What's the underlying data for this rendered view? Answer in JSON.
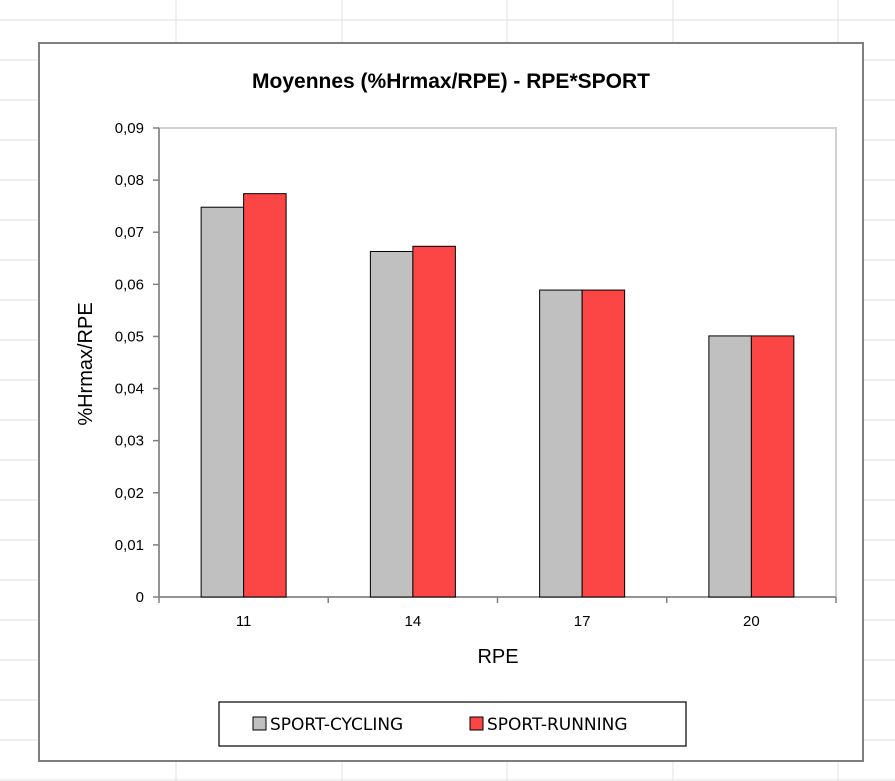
{
  "colors": {
    "cycling": "#c0c0c0",
    "running": "#fc4545",
    "bar_stroke": "#000000",
    "axis": "#808080",
    "plot_border": "#d0d0d0",
    "frame": "#7f7f7f",
    "sheet_grid": "#e2e2e2"
  },
  "chart_data": {
    "type": "bar",
    "title": "Moyennes (%Hrmax/RPE) - RPE*SPORT",
    "xlabel": "RPE",
    "ylabel": "%Hrmax/RPE",
    "categories": [
      "11",
      "14",
      "17",
      "20"
    ],
    "series": [
      {
        "name": "SPORT-CYCLING",
        "values": [
          0.0748,
          0.0663,
          0.0589,
          0.0501
        ]
      },
      {
        "name": "SPORT-RUNNING",
        "values": [
          0.0774,
          0.0673,
          0.0589,
          0.0501
        ]
      }
    ],
    "ylim": [
      0,
      0.09
    ],
    "yticks": [
      "0",
      "0,01",
      "0,02",
      "0,03",
      "0,04",
      "0,05",
      "0,06",
      "0,07",
      "0,08",
      "0,09"
    ],
    "legend_position": "bottom",
    "grid": false
  }
}
